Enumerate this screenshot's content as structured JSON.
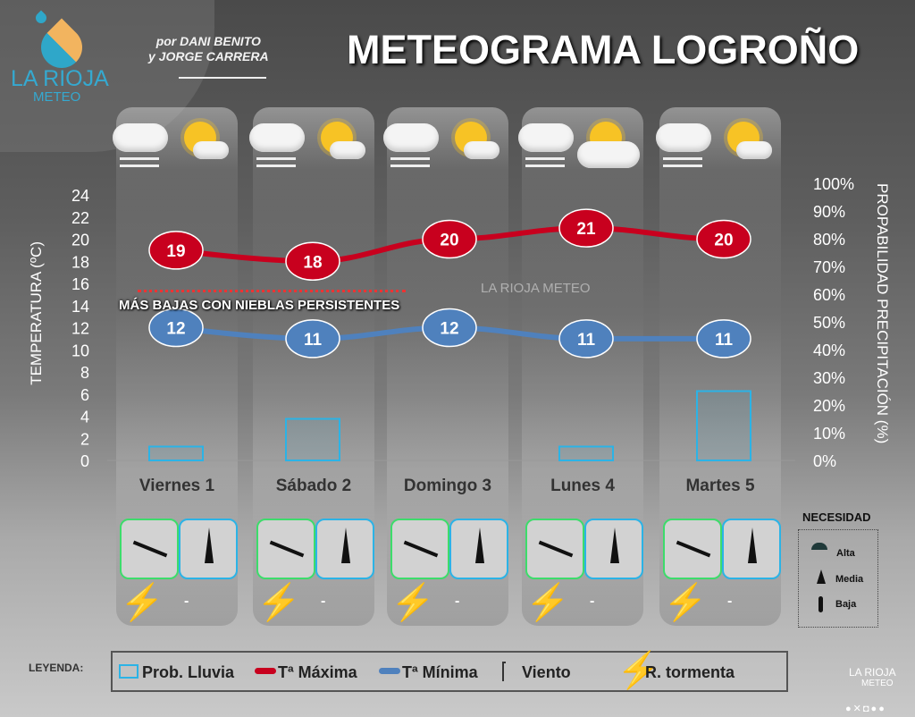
{
  "header": {
    "title": "METEOGRAMA LOGROÑO",
    "byline_1": "por DANI BENITO",
    "byline_2": "y JORGE CARRERA",
    "logo_text_1": "LA RIOJA",
    "logo_text_2": "METEO"
  },
  "chart_data": {
    "type": "line",
    "categories": [
      "Viernes 1",
      "Sábado 2",
      "Domingo 3",
      "Lunes 4",
      "Martes 5"
    ],
    "ylabel": "TEMPERATURA (ºC)",
    "y2label": "PROPABILIDAD PRECIPITACIÓN (%)",
    "ylim": [
      0,
      24
    ],
    "y_ticks": [
      "0",
      "2",
      "4",
      "6",
      "8",
      "10",
      "12",
      "14",
      "16",
      "18",
      "20",
      "22",
      "24"
    ],
    "y2lim": [
      0,
      100
    ],
    "y2_ticks": [
      "0%",
      "10%",
      "20%",
      "30%",
      "40%",
      "50%",
      "60%",
      "70%",
      "80%",
      "90%",
      "100%"
    ],
    "series": [
      {
        "name": "Tª Máxima",
        "type": "line",
        "color": "#c8001e",
        "values": [
          19,
          18,
          20,
          21,
          20
        ],
        "labels": [
          "19",
          "18",
          "20",
          "21",
          "20"
        ]
      },
      {
        "name": "Tª Mínima",
        "type": "line",
        "color": "#4f81bd",
        "values": [
          12,
          11,
          12,
          11,
          11
        ],
        "labels": [
          "12",
          "11",
          "12",
          "11",
          "11"
        ]
      },
      {
        "name": "Prob. Lluvia",
        "type": "bar",
        "axis": "y2",
        "color": "#2bb3e6",
        "values": [
          5,
          15,
          0,
          5,
          25
        ]
      }
    ],
    "annotation": "MÁS BAJAS CON NIEBLAS PERSISTENTES",
    "watermark": "LA RIOJA METEO"
  },
  "days": [
    {
      "name": "Viernes 1",
      "sky_icons": [
        "fog-cloud-icon",
        "sun-cloud-icon"
      ],
      "wind_icon": "wind-arrow-nw-icon",
      "umbrella": "Media",
      "storm_icon": "lightning-icon",
      "storm_text": "-"
    },
    {
      "name": "Sábado 2",
      "sky_icons": [
        "fog-cloud-icon",
        "sun-behind-clouds-icon"
      ],
      "wind_icon": "wind-arrow-nw-icon",
      "umbrella": "Media",
      "storm_icon": "lightning-icon",
      "storm_text": "-"
    },
    {
      "name": "Domingo 3",
      "sky_icons": [
        "fog-cloud-icon",
        "sun-cloud-icon"
      ],
      "wind_icon": "wind-arrow-nw-icon",
      "umbrella": "Media",
      "storm_icon": "lightning-icon",
      "storm_text": "-"
    },
    {
      "name": "Lunes 4",
      "sky_icons": [
        "fog-cloud-icon",
        "cloud-icon"
      ],
      "wind_icon": "wind-arrow-nw-icon",
      "umbrella": "Media",
      "storm_icon": "lightning-icon",
      "storm_text": "-"
    },
    {
      "name": "Martes 5",
      "sky_icons": [
        "sun-cloud-rain-icon",
        "sun-cloud-icon"
      ],
      "wind_icon": "wind-arrow-nw-icon",
      "umbrella": "Media",
      "storm_icon": "lightning-icon",
      "storm_text": "-"
    }
  ],
  "necesidad": {
    "title": "NECESIDAD",
    "items": [
      "Alta",
      "Media",
      "Baja"
    ]
  },
  "legend": {
    "label": "LEYENDA:",
    "items": [
      "Prob. Lluvia",
      "Tª Máxima",
      "Tª Mínima",
      "Viento",
      "R. tormenta"
    ]
  },
  "footer": {
    "logo_1": "LA RIOJA",
    "logo_2": "METEO",
    "social_icons": [
      "facebook-icon",
      "x-icon",
      "instagram-icon",
      "telegram-icon",
      "whatsapp-icon"
    ]
  }
}
